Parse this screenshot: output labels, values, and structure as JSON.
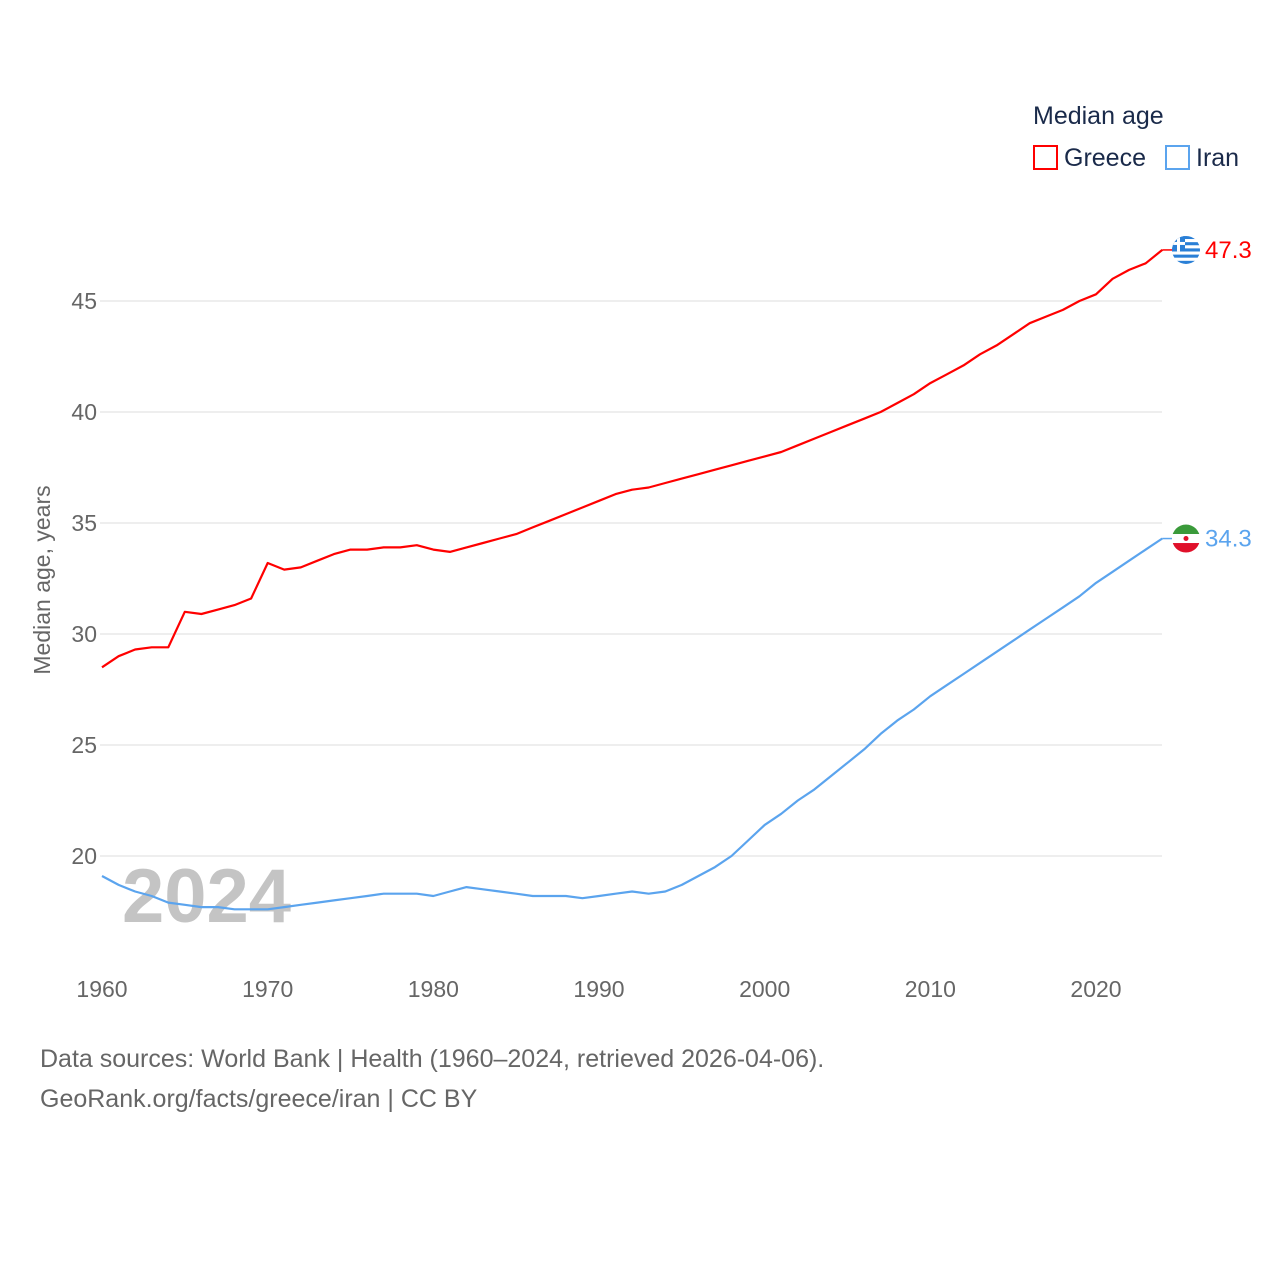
{
  "chart_data": {
    "type": "line",
    "title": "Median age",
    "xlabel": "",
    "ylabel": "Median age, years",
    "xlim": [
      1960,
      2024
    ],
    "ylim": [
      15.5,
      48
    ],
    "yticks": [
      20,
      25,
      30,
      35,
      40,
      45
    ],
    "xticks": [
      1960,
      1970,
      1980,
      1990,
      2000,
      2010,
      2020
    ],
    "grid": true,
    "legend_position": "top-right",
    "year_watermark": "2024",
    "x_start": 1960,
    "series": [
      {
        "name": "Greece",
        "color": "#ff0000",
        "end_label": "47.3",
        "flag": "greece-flag",
        "values": [
          28.5,
          29.0,
          29.3,
          29.4,
          29.4,
          31.0,
          30.9,
          31.1,
          31.3,
          31.6,
          33.2,
          32.9,
          33.0,
          33.3,
          33.6,
          33.8,
          33.8,
          33.9,
          33.9,
          34.0,
          33.8,
          33.7,
          33.9,
          34.1,
          34.3,
          34.5,
          34.8,
          35.1,
          35.4,
          35.7,
          36.0,
          36.3,
          36.5,
          36.6,
          36.8,
          37.0,
          37.2,
          37.4,
          37.6,
          37.8,
          38.0,
          38.2,
          38.5,
          38.8,
          39.1,
          39.4,
          39.7,
          40.0,
          40.4,
          40.8,
          41.3,
          41.7,
          42.1,
          42.6,
          43.0,
          43.5,
          44.0,
          44.3,
          44.6,
          45.0,
          45.3,
          46.0,
          46.4,
          46.7,
          47.3
        ]
      },
      {
        "name": "Iran",
        "color": "#5ba4ee",
        "end_label": "34.3",
        "flag": "iran-flag",
        "values": [
          19.1,
          18.7,
          18.4,
          18.2,
          17.9,
          17.8,
          17.7,
          17.7,
          17.6,
          17.6,
          17.6,
          17.7,
          17.8,
          17.9,
          18.0,
          18.1,
          18.2,
          18.3,
          18.3,
          18.3,
          18.2,
          18.4,
          18.6,
          18.5,
          18.4,
          18.3,
          18.2,
          18.2,
          18.2,
          18.1,
          18.2,
          18.3,
          18.4,
          18.3,
          18.4,
          18.7,
          19.1,
          19.5,
          20.0,
          20.7,
          21.4,
          21.9,
          22.5,
          23.0,
          23.6,
          24.2,
          24.8,
          25.5,
          26.1,
          26.6,
          27.2,
          27.7,
          28.2,
          28.7,
          29.2,
          29.7,
          30.2,
          30.7,
          31.2,
          31.7,
          32.3,
          32.8,
          33.3,
          33.8,
          34.3
        ]
      }
    ]
  },
  "footer": {
    "line1": "Data sources: World Bank | Health (1960–2024, retrieved 2026-04-06).",
    "line2": "GeoRank.org/facts/greece/iran | CC BY"
  }
}
